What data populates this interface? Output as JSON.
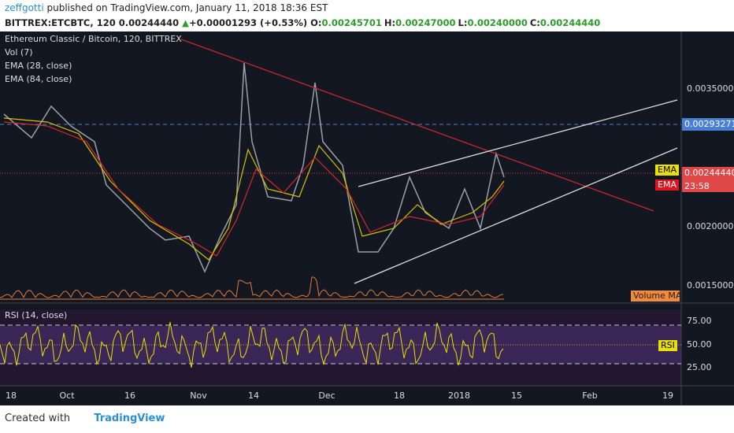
{
  "header": {
    "author": "zeffgotti",
    "published": "published on TradingView.com, January 11, 2018 18:36 EST",
    "symbol": "BITTREX:ETCBTC, 120",
    "last": "0.00244440",
    "arrow": "▲",
    "change": "+0.00001293 (+0.53%)",
    "ohlc": [
      {
        "key": "O:",
        "value": "0.00245701"
      },
      {
        "key": "H:",
        "value": "0.00247000"
      },
      {
        "key": "L:",
        "value": "0.00240000"
      },
      {
        "key": "C:",
        "value": "0.00244440"
      }
    ]
  },
  "legend": {
    "title": "Ethereum Classic / Bitcoin, 120, BITTREX",
    "items": [
      "Vol (7)",
      "EMA (28, close)",
      "EMA (84, close)"
    ],
    "rsi": "RSI (14, close)"
  },
  "price_axis": [
    "0.00350000",
    "0.00200000",
    "0.00150000"
  ],
  "badges": {
    "level": "0.00293271",
    "ema1": "EMA",
    "price": "0.00244440",
    "ema2": "EMA",
    "countdown": "23:58",
    "volume_ma": "Volume MA",
    "rsi": "RSI"
  },
  "rsi_axis": [
    "75.00",
    "50.00",
    "25.00"
  ],
  "time_axis": [
    "18",
    "Oct",
    "16",
    "Nov",
    "14",
    "Dec",
    "18",
    "2018",
    "15",
    "Feb",
    "19"
  ],
  "footer": {
    "created": "Created with",
    "brand": "TradingView"
  }
}
